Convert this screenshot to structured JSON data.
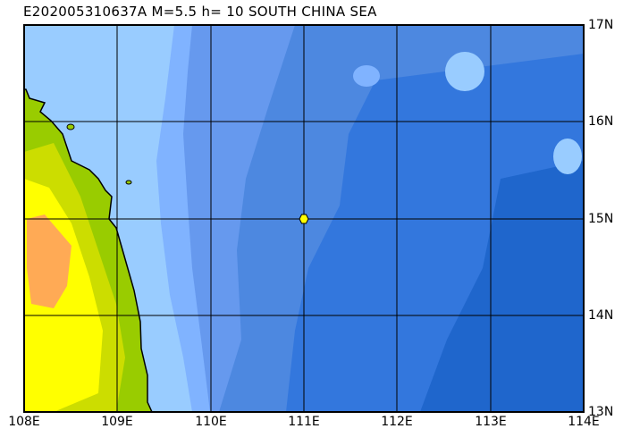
{
  "title": "E202005310637A  M=5.5  h=  10  SOUTH CHINA SEA",
  "map": {
    "region": "SOUTH CHINA SEA",
    "lon_range": [
      108,
      114
    ],
    "lat_range": [
      13,
      17
    ],
    "lon_labels": [
      "108E",
      "109E",
      "110E",
      "111E",
      "112E",
      "113E",
      "114E"
    ],
    "lat_labels": [
      "17N",
      "16N",
      "15N",
      "14N",
      "13N"
    ],
    "epicenter": {
      "lon": 111.0,
      "lat": 15.0,
      "color": "#ffff00"
    },
    "colors": {
      "ocean_shallow": "#99ccff",
      "ocean_mid1": "#80b3ff",
      "ocean_mid2": "#6699ee",
      "ocean_deep1": "#4d88e0",
      "ocean_deep2": "#3377dd",
      "ocean_deepest": "#1f66cc",
      "land_low": "#99cc00",
      "land_mid": "#ccdd00",
      "land_high": "#ffff00",
      "land_peak": "#ffaa55"
    }
  }
}
